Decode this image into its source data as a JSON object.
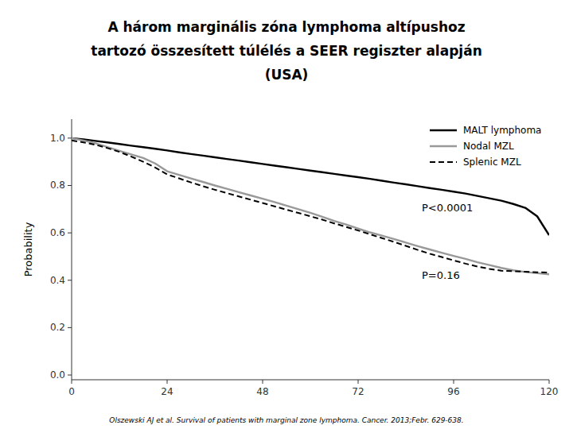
{
  "chart_data": {
    "type": "line",
    "title": [
      "A három marginális zóna lymphoma altípushoz",
      "tartozó összesített túlélés a SEER regiszter alapján",
      "(USA)"
    ],
    "y_label": "Probability",
    "footnote": "Olszewski AJ et al. Survival of patients with marginal zone lymphoma. Cancer. 2013;Febr. 629-638.",
    "xlim": [
      0,
      120
    ],
    "ylim": [
      -0.02,
      1.08
    ],
    "xticks": [
      0,
      24,
      48,
      72,
      96,
      120
    ],
    "yticks": [
      {
        "value": 0.0,
        "label": "0.0"
      },
      0.2,
      0.4,
      0.6,
      0.8,
      {
        "value": 1.0,
        "label": "1.0"
      }
    ],
    "grid": false,
    "legend": "upper right",
    "annotations": [
      {
        "text": "P<0.0001",
        "x": 88,
        "y": 0.69
      },
      {
        "text": "P=0.16",
        "x": 88,
        "y": 0.405
      }
    ],
    "x": [
      0,
      3,
      6,
      9,
      12,
      15,
      18,
      21,
      24,
      27,
      30,
      33,
      36,
      39,
      42,
      45,
      48,
      51,
      54,
      57,
      60,
      63,
      66,
      69,
      72,
      75,
      78,
      81,
      84,
      87,
      90,
      93,
      96,
      99,
      102,
      105,
      108,
      111,
      114,
      117,
      120
    ],
    "series": [
      {
        "name": "MALT lymphoma",
        "color": "#000000",
        "line_style": "solid",
        "values": [
          1.0,
          0.995,
          0.988,
          0.982,
          0.975,
          0.968,
          0.962,
          0.955,
          0.948,
          0.94,
          0.933,
          0.926,
          0.919,
          0.912,
          0.905,
          0.898,
          0.891,
          0.884,
          0.877,
          0.87,
          0.863,
          0.856,
          0.849,
          0.842,
          0.835,
          0.828,
          0.82,
          0.812,
          0.805,
          0.797,
          0.789,
          0.782,
          0.774,
          0.766,
          0.756,
          0.746,
          0.736,
          0.722,
          0.706,
          0.67,
          0.59
        ]
      },
      {
        "name": "Nodal MZL",
        "color": "#999999",
        "line_style": "solid",
        "values": [
          1.0,
          0.99,
          0.978,
          0.962,
          0.946,
          0.931,
          0.916,
          0.893,
          0.86,
          0.845,
          0.83,
          0.815,
          0.8,
          0.786,
          0.772,
          0.758,
          0.744,
          0.73,
          0.715,
          0.7,
          0.685,
          0.668,
          0.65,
          0.635,
          0.618,
          0.602,
          0.588,
          0.574,
          0.559,
          0.544,
          0.53,
          0.516,
          0.503,
          0.49,
          0.476,
          0.464,
          0.452,
          0.442,
          0.435,
          0.43,
          0.425
        ]
      },
      {
        "name": "Splenic MZL",
        "color": "#000000",
        "line_style": "dashed",
        "values": [
          0.99,
          0.982,
          0.972,
          0.958,
          0.942,
          0.922,
          0.9,
          0.876,
          0.847,
          0.83,
          0.813,
          0.797,
          0.782,
          0.768,
          0.754,
          0.74,
          0.726,
          0.712,
          0.698,
          0.684,
          0.67,
          0.656,
          0.64,
          0.625,
          0.61,
          0.594,
          0.578,
          0.562,
          0.545,
          0.528,
          0.512,
          0.498,
          0.484,
          0.47,
          0.458,
          0.448,
          0.44,
          0.438,
          0.436,
          0.434,
          0.432
        ]
      }
    ]
  }
}
